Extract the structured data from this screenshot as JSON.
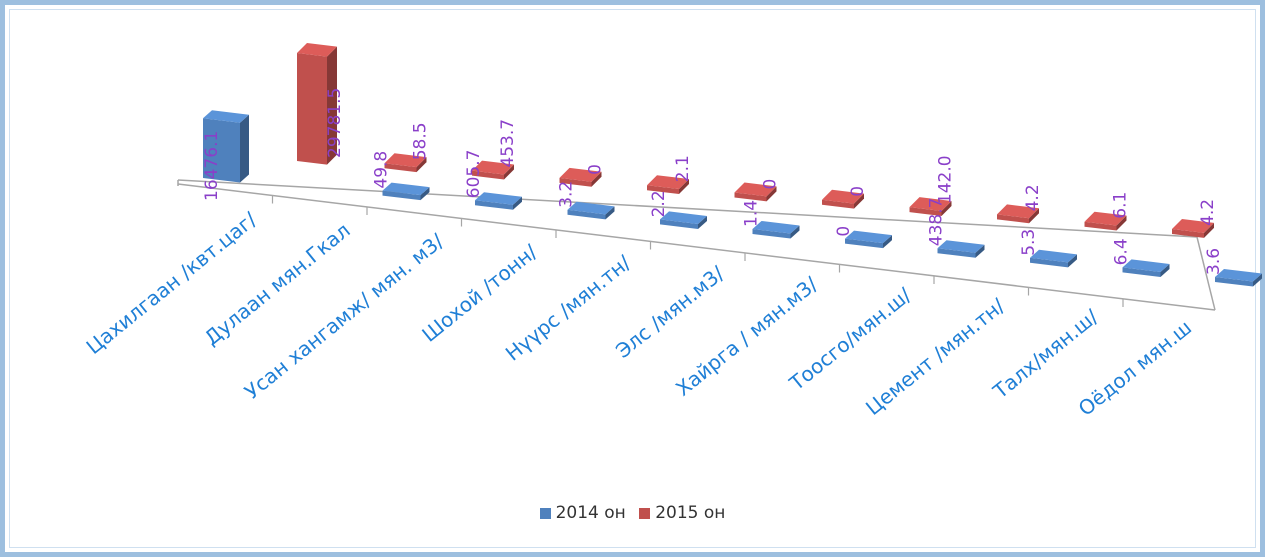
{
  "chart_data": {
    "type": "bar",
    "categories": [
      "Цахилгаан  /квт.цаг/",
      "Дулаан  мян.Гкал",
      "Усан хангамж/ мян. м3/",
      "Шохой /тонн/",
      "Нүүрс /мян.тн/",
      "Элс /мян.м3/",
      "Хайрга / мян.м3/",
      "Тоосго/мян.ш/",
      "Цемент /мян.тн/",
      "Талх/мян.ш/",
      "Оёдол мян.ш"
    ],
    "series": [
      {
        "name": "2014 он",
        "color": "#4f81bd",
        "values": [
          16476.1,
          49.8,
          605.7,
          3.2,
          2.2,
          1.4,
          0,
          438.7,
          5.3,
          6.4,
          3.6
        ],
        "labels": [
          "16476.1",
          "49.8",
          "605.7",
          "3.2",
          "2.2",
          "1.4",
          "0",
          "438.7",
          "5.3",
          "6.4",
          "3.6"
        ]
      },
      {
        "name": "2015 он",
        "color": "#c0504d",
        "values": [
          29781.5,
          58.5,
          453.7,
          0,
          2.1,
          0,
          0,
          142.0,
          4.2,
          6.1,
          4.2
        ],
        "labels": [
          "29781.5",
          "58.5",
          "453.7",
          "0",
          "2.1",
          "0",
          "0",
          "142.0",
          "4.2",
          "6.1",
          "4.2"
        ]
      }
    ],
    "chart_style": "3d-column-perspective",
    "legend_position": "bottom",
    "grid": false
  },
  "legend": {
    "items": [
      {
        "label": "2014 он",
        "color": "#4f81bd"
      },
      {
        "label": "2015 он",
        "color": "#c0504d"
      }
    ]
  }
}
